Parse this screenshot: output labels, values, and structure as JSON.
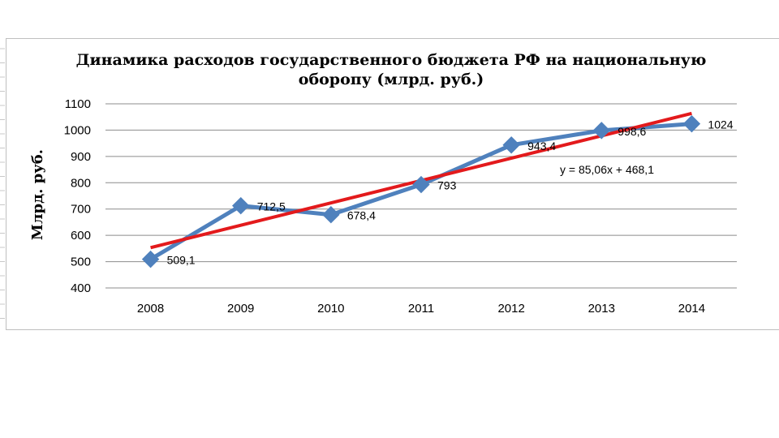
{
  "chart_data": {
    "type": "line",
    "title_line1": "Динамика расходов государственного бюджета РФ на национальную",
    "title_line2": "оборопу (млрд. руб.)",
    "ylabel": "Млрд. руб.",
    "xlabel": "",
    "categories": [
      "2008",
      "2009",
      "2010",
      "2011",
      "2012",
      "2013",
      "2014"
    ],
    "series": [
      {
        "values": [
          509.1,
          712.5,
          678.4,
          793,
          943.4,
          998.6,
          1024
        ],
        "labels": [
          "509,1",
          "712,5",
          "678,4",
          "793",
          "943,4",
          "998,6",
          "1024"
        ],
        "color": "#4F81BD"
      }
    ],
    "trendline": {
      "type": "linear",
      "slope": 85.06,
      "intercept": 468.1,
      "equation": "y = 85,06x + 468,1",
      "color": "#E31A1C"
    },
    "ylim": [
      400,
      1100
    ],
    "yticks": [
      "400",
      "500",
      "600",
      "700",
      "800",
      "900",
      "1000",
      "1100"
    ],
    "grid": true,
    "legend": "none"
  }
}
